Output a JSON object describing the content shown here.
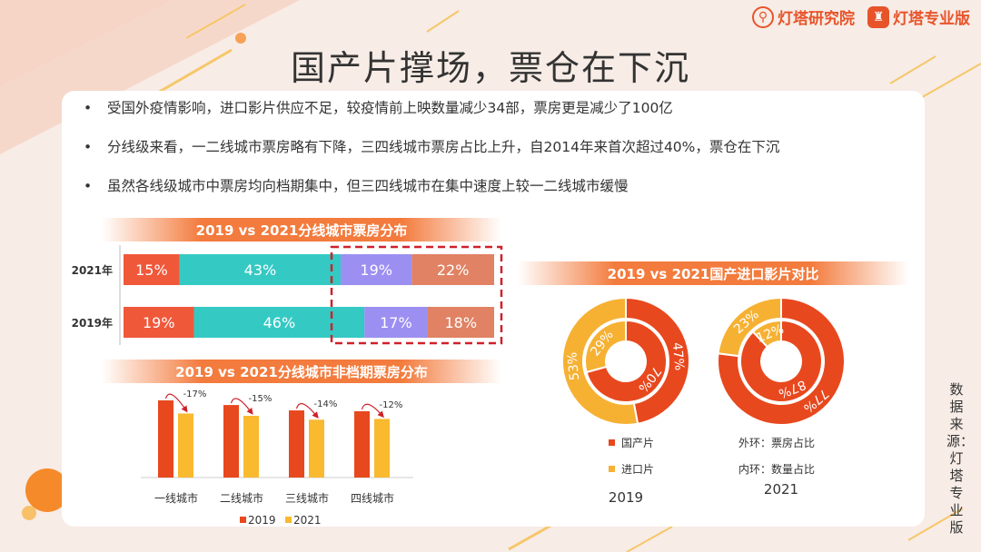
{
  "header": {
    "logo_research": "灯塔研究院",
    "logo_pro": "灯塔专业版",
    "title": "国产片撑场，票仓在下沉"
  },
  "bullets": [
    "受国外疫情影响，进口影片供应不足，较疫情前上映数量减少34部，票房更是减少了100亿",
    "分线级来看，一二线城市票房略有下降，三四线城市票房占比上升，自2014年来首次超过40%，票仓在下沉",
    "虽然各线级城市中票房均向档期集中，但三四线城市在集中速度上较一二线城市缓慢"
  ],
  "source_note": "数据来源：灯塔专业版",
  "colors": {
    "accent": "#e8542a",
    "tier1": "#f0583a",
    "tier2": "#35c9c4",
    "tier3": "#9b8ff2",
    "tier4": "#e08263",
    "year2019": "#e8481e",
    "year2021": "#f9ba30",
    "domestic": "#e8481e",
    "imported": "#f6b133"
  },
  "chart_data": [
    {
      "type": "bar",
      "stacked": true,
      "orientation": "horizontal",
      "title": "2019 vs 2021分线城市票房分布",
      "categories": [
        "2021年",
        "2019年"
      ],
      "series": [
        {
          "values": [
            15,
            19
          ]
        },
        {
          "values": [
            43,
            46
          ]
        },
        {
          "values": [
            19,
            17
          ]
        },
        {
          "values": [
            22,
            18
          ]
        }
      ],
      "value_labels": [
        [
          "15%",
          "43%",
          "19%",
          "22%"
        ],
        [
          "19%",
          "46%",
          "17%",
          "18%"
        ]
      ],
      "highlight": "dashed box around third and fourth segments"
    },
    {
      "type": "bar",
      "title": "2019 vs 2021分线城市非档期票房分布",
      "categories": [
        "一线城市",
        "二线城市",
        "三线城市",
        "四线城市"
      ],
      "series": [
        {
          "name": "2019",
          "values": [
            100,
            94,
            87,
            86
          ]
        },
        {
          "name": "2021",
          "values": [
            83,
            80,
            75,
            76
          ]
        }
      ],
      "change_labels": [
        "-17%",
        "-15%",
        "-14%",
        "-12%"
      ],
      "legend": [
        "2019",
        "2021"
      ],
      "legend_position": "bottom"
    },
    {
      "type": "pie",
      "variant": "double-donut",
      "title": "2019 vs 2021国产进口影片对比",
      "charts": [
        {
          "label": "2019",
          "outer": {
            "series": "票房占比",
            "values": [
              {
                "name": "国产片",
                "value": 47
              },
              {
                "name": "进口片",
                "value": 53
              }
            ]
          },
          "inner": {
            "series": "数量占比",
            "values": [
              {
                "name": "国产片",
                "value": 70
              },
              {
                "name": "进口片",
                "value": 29
              }
            ]
          }
        },
        {
          "label": "2021",
          "outer": {
            "series": "票房占比",
            "values": [
              {
                "name": "国产片",
                "value": 77
              },
              {
                "name": "进口片",
                "value": 23
              }
            ]
          },
          "inner": {
            "series": "数量占比",
            "values": [
              {
                "name": "国产片",
                "value": 87
              },
              {
                "name": "进口片",
                "value": 12
              }
            ]
          }
        }
      ],
      "legend": [
        "国产片",
        "进口片"
      ],
      "ring_notes": [
        "外环：票房占比",
        "内环：数量占比"
      ]
    }
  ]
}
